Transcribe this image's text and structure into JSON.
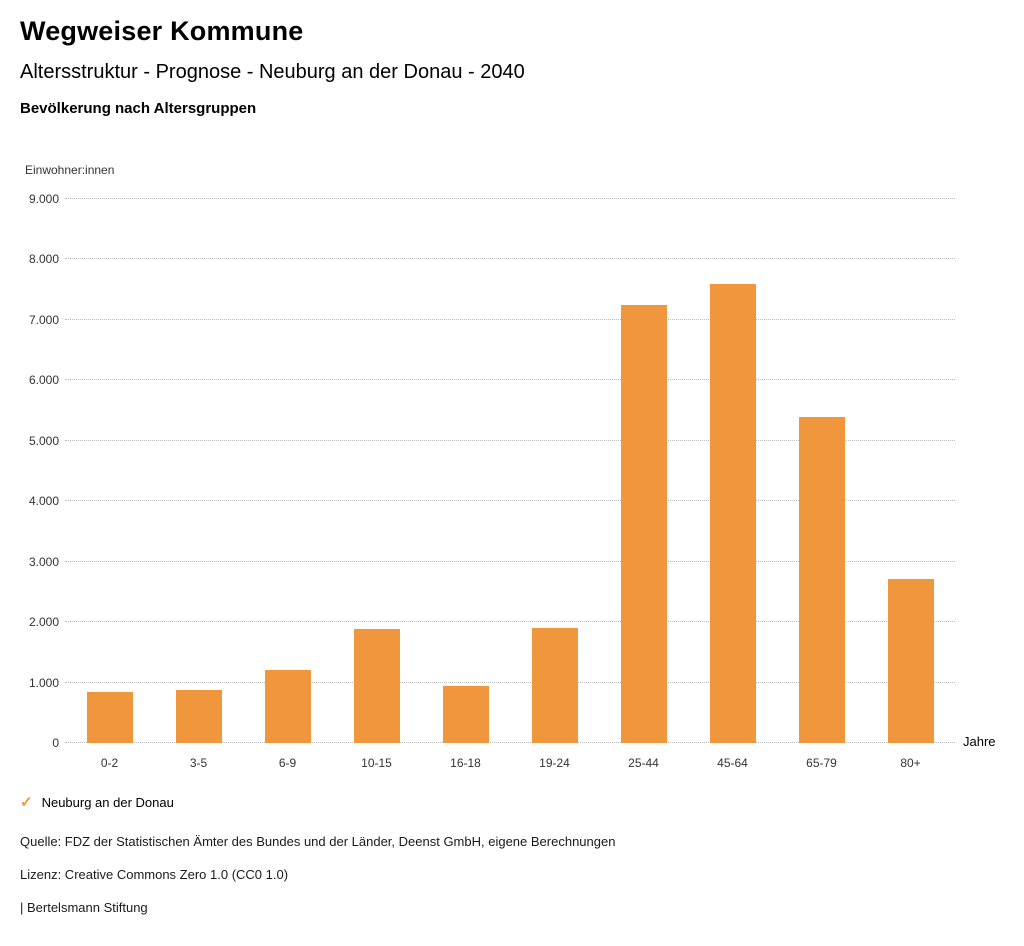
{
  "header": {
    "title": "Wegweiser Kommune",
    "subtitle": "Altersstruktur - Prognose - Neuburg an der Donau - 2040",
    "chart_heading": "Bevölkerung nach Altersgruppen"
  },
  "chart_data": {
    "type": "bar",
    "title": "Bevölkerung nach Altersgruppen",
    "ylabel": "Einwohner:innen",
    "xlabel": "Jahre",
    "categories": [
      "0-2",
      "3-5",
      "6-9",
      "10-15",
      "16-18",
      "19-24",
      "25-44",
      "45-64",
      "65-79",
      "80+"
    ],
    "values": [
      850,
      870,
      1200,
      1880,
      940,
      1900,
      7240,
      7600,
      5390,
      2720
    ],
    "ylim": [
      0,
      9000
    ],
    "y_ticks": [
      "0",
      "1.000",
      "2.000",
      "3.000",
      "4.000",
      "5.000",
      "6.000",
      "7.000",
      "8.000",
      "9.000"
    ],
    "bar_color": "#F0963C",
    "grid": true,
    "legend_position": "bottom-left",
    "series": [
      {
        "name": "Neuburg an der Donau",
        "values": [
          850,
          870,
          1200,
          1880,
          940,
          1900,
          7240,
          7600,
          5390,
          2720
        ]
      }
    ]
  },
  "legend": {
    "check_icon": "✓",
    "label": "Neuburg an der Donau"
  },
  "footer": {
    "source": "Quelle: FDZ der Statistischen Ämter des Bundes und der Länder, Deenst GmbH, eigene Berechnungen",
    "license": "Lizenz: Creative Commons Zero 1.0 (CC0 1.0)",
    "attribution": "| Bertelsmann Stiftung"
  }
}
